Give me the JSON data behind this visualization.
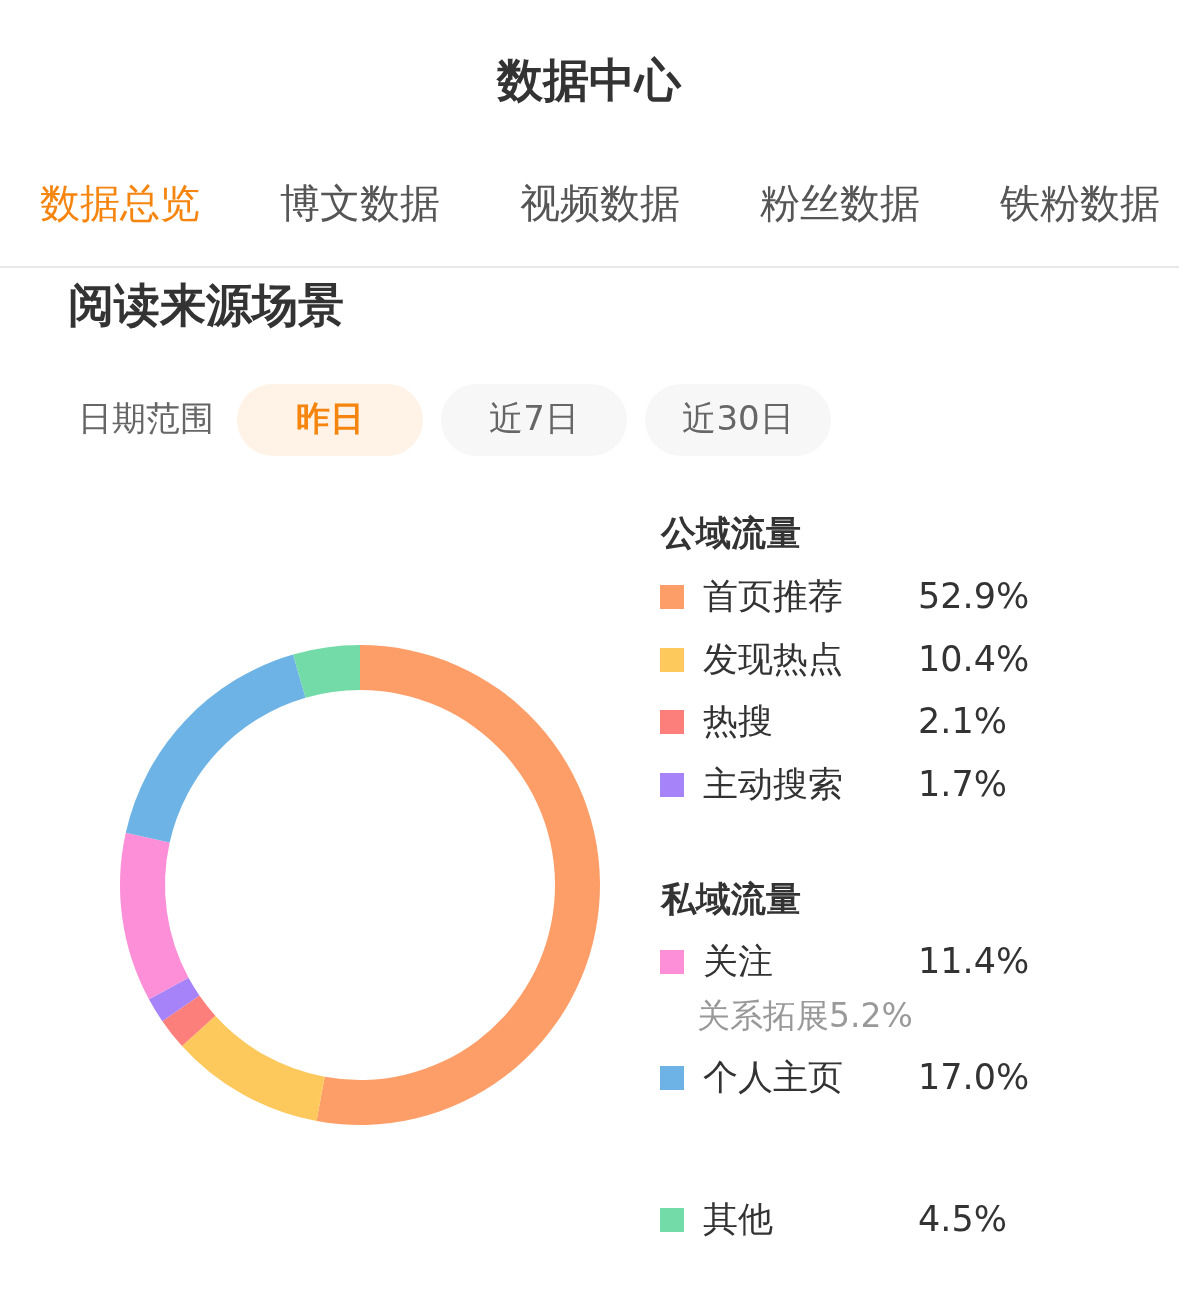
{
  "chart_data": {
    "type": "donut",
    "title": "阅读来源场景",
    "categories": [
      "首页推荐",
      "发现热点",
      "热搜",
      "主动搜索",
      "关注",
      "个人主页",
      "其他"
    ],
    "values": [
      52.9,
      10.4,
      2.1,
      1.7,
      11.4,
      17.0,
      4.5
    ],
    "colors": [
      "#fd9e68",
      "#fdc85c",
      "#fd7f7b",
      "#a683f8",
      "#fd8ed8",
      "#6db3e5",
      "#72dba7"
    ],
    "value_labels": [
      "52.9%",
      "10.4%",
      "2.1%",
      "1.7%",
      "11.4%",
      "17.0%",
      "4.5%"
    ],
    "legend": "right",
    "annotations": [
      "数据中心",
      "数据总览",
      "博文数据",
      "视频数据",
      "粉丝数据",
      "铁粉数据",
      "日期范围",
      "昨日",
      "近7日",
      "近30日",
      "公域流量",
      "私域流量",
      "关系拓展5.2%"
    ]
  }
}
